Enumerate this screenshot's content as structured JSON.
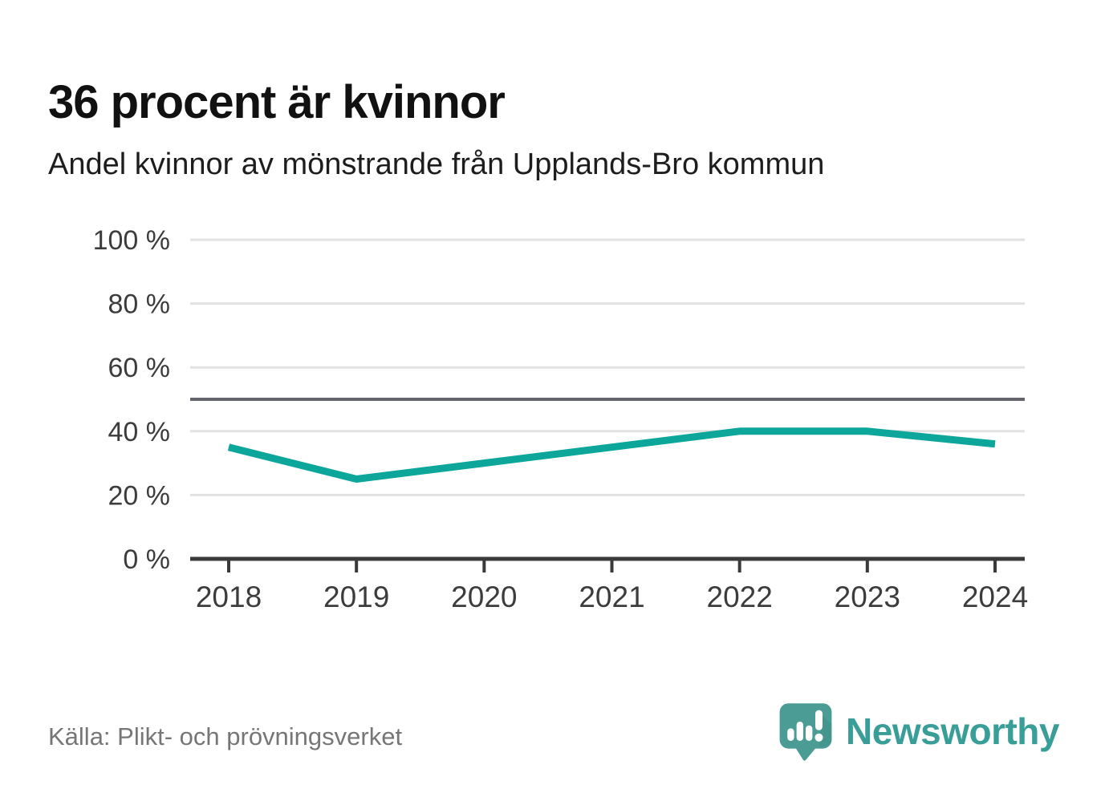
{
  "title": "36 procent är kvinnor",
  "subtitle": "Andel kvinnor av mönstrande från Upplands-Bro kommun",
  "footer": {
    "source": "Källa: Plikt- och prövningsverket",
    "brand_name": "Newsworthy"
  },
  "colors": {
    "accent_teal": "#0ca69b",
    "brand_teal": "#3a9e98",
    "icon_teal": "#4a9c94",
    "axis_dark": "#3a3a3a",
    "grid_light": "#e2e2e2",
    "reference_gray": "#64646c",
    "muted_text": "#767676"
  },
  "chart_data": {
    "type": "line",
    "title": "36 procent är kvinnor",
    "subtitle": "Andel kvinnor av mönstrande från Upplands-Bro kommun",
    "x": [
      "2018",
      "2019",
      "2020",
      "2021",
      "2022",
      "2023",
      "2024"
    ],
    "series": [
      {
        "name": "Andel kvinnor av mönstrande",
        "values": [
          35,
          25,
          30,
          35,
          40,
          40,
          36
        ],
        "color": "#0ca69b"
      }
    ],
    "xlabel": "",
    "ylabel": "",
    "ylim": [
      0,
      100
    ],
    "yticks": [
      0,
      20,
      40,
      60,
      80,
      100
    ],
    "ytick_labels": [
      "0 %",
      "20 %",
      "40 %",
      "60 %",
      "80 %",
      "100 %"
    ],
    "reference_line": {
      "value": 50
    },
    "grid": true,
    "legend": "none"
  }
}
